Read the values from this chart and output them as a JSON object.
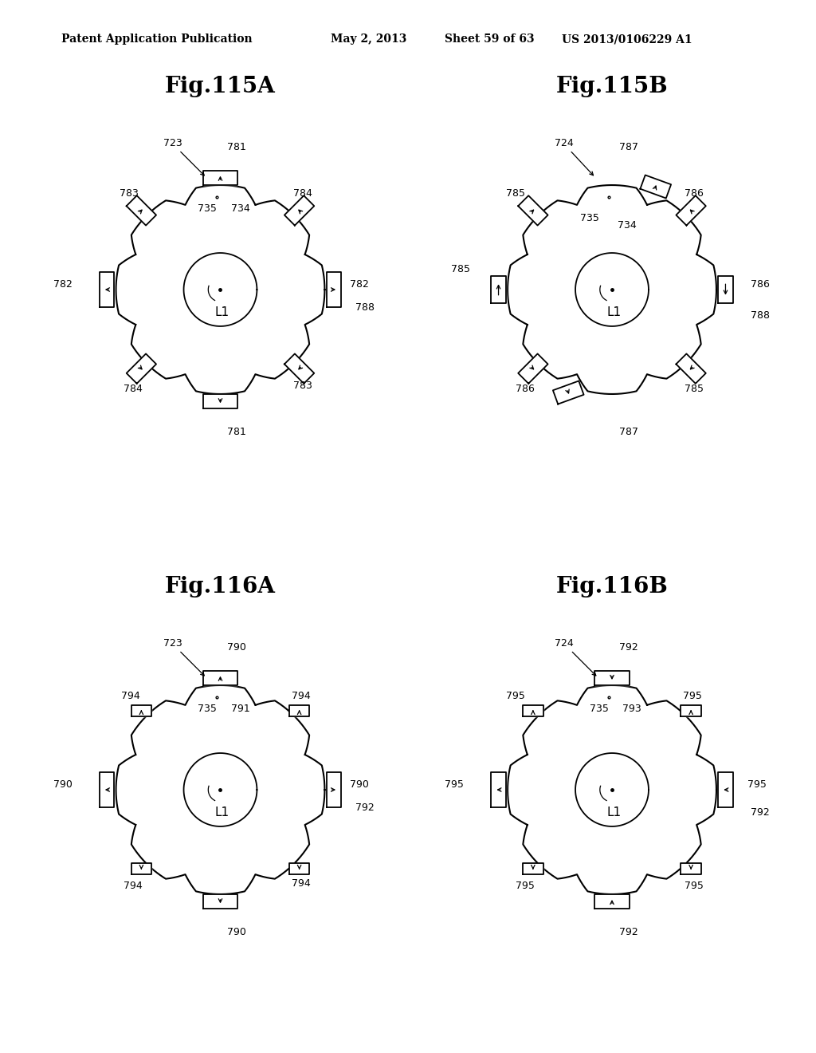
{
  "header_text": "Patent Application Publication",
  "header_date": "May 2, 2013",
  "header_sheet": "Sheet 59 of 63",
  "header_patent": "US 2013/0106229 A1",
  "fig_titles": [
    "Fig.115A",
    "Fig.115B",
    "Fig.116A",
    "Fig.116B"
  ],
  "background_color": "#ffffff",
  "label_fontsize": 9,
  "header_fontsize": 10
}
